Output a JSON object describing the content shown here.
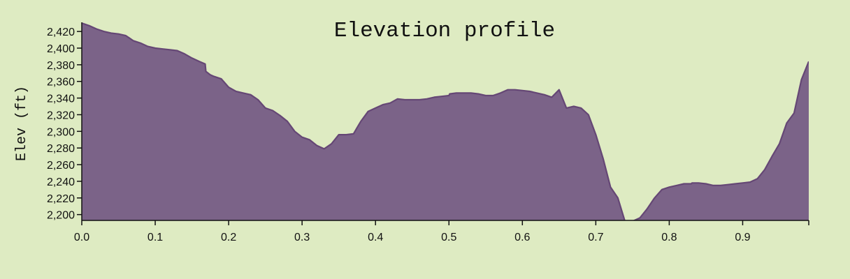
{
  "chart_data": {
    "type": "area",
    "title": "Elevation profile",
    "xlabel": "",
    "ylabel": "Elev (ft)",
    "xlim": [
      0,
      0.99
    ],
    "ylim": [
      2193,
      2431
    ],
    "grid": false,
    "colors": {
      "fill": "#7b6388",
      "line": "#654775",
      "background": "#deebc2"
    },
    "x_ticks": [
      0.0,
      0.1,
      0.2,
      0.3,
      0.4,
      0.5,
      0.6,
      0.7,
      0.8,
      0.9
    ],
    "x_tick_labels": [
      "0.0",
      "0.1",
      "0.2",
      "0.3",
      "0.4",
      "0.5",
      "0.6",
      "0.7",
      "0.8",
      "0.9"
    ],
    "y_ticks": [
      2200,
      2220,
      2240,
      2260,
      2280,
      2300,
      2320,
      2340,
      2360,
      2380,
      2400,
      2420
    ],
    "y_tick_labels": [
      "2,200",
      "2,220",
      "2,240",
      "2,260",
      "2,280",
      "2,300",
      "2,320",
      "2,340",
      "2,360",
      "2,380",
      "2,400",
      "2,420"
    ],
    "x": [
      0.0,
      0.01,
      0.02,
      0.03,
      0.04,
      0.05,
      0.06,
      0.065,
      0.07,
      0.08,
      0.09,
      0.1,
      0.11,
      0.12,
      0.13,
      0.14,
      0.15,
      0.16,
      0.168,
      0.169,
      0.175,
      0.18,
      0.19,
      0.2,
      0.21,
      0.22,
      0.23,
      0.24,
      0.25,
      0.26,
      0.27,
      0.28,
      0.29,
      0.3,
      0.31,
      0.32,
      0.33,
      0.34,
      0.35,
      0.36,
      0.37,
      0.38,
      0.39,
      0.4,
      0.41,
      0.42,
      0.43,
      0.44,
      0.45,
      0.46,
      0.47,
      0.48,
      0.49,
      0.5,
      0.501,
      0.51,
      0.52,
      0.53,
      0.54,
      0.55,
      0.56,
      0.57,
      0.58,
      0.59,
      0.6,
      0.61,
      0.62,
      0.63,
      0.64,
      0.65,
      0.66,
      0.67,
      0.68,
      0.69,
      0.7,
      0.71,
      0.72,
      0.73,
      0.74,
      0.75,
      0.76,
      0.77,
      0.78,
      0.79,
      0.8,
      0.81,
      0.82,
      0.83,
      0.831,
      0.84,
      0.85,
      0.86,
      0.87,
      0.88,
      0.89,
      0.9,
      0.91,
      0.92,
      0.93,
      0.94,
      0.95,
      0.96,
      0.97,
      0.98,
      0.99
    ],
    "y": [
      2430,
      2427,
      2423,
      2420,
      2418,
      2417,
      2415,
      2412,
      2409,
      2406,
      2402,
      2400,
      2399,
      2398,
      2397,
      2393,
      2388,
      2384,
      2381,
      2372,
      2368,
      2366,
      2363,
      2353,
      2348,
      2346,
      2344,
      2338,
      2328,
      2325,
      2319,
      2312,
      2300,
      2293,
      2290,
      2283,
      2279,
      2285,
      2296,
      2296,
      2297,
      2312,
      2324,
      2328,
      2332,
      2334,
      2339,
      2338,
      2338,
      2338,
      2339,
      2341,
      2342,
      2343,
      2345,
      2346,
      2346,
      2346,
      2345,
      2343,
      2343,
      2346,
      2350,
      2350,
      2349,
      2348,
      2346,
      2344,
      2341,
      2350,
      2328,
      2330,
      2328,
      2320,
      2296,
      2267,
      2233,
      2220,
      2191,
      2192,
      2196,
      2207,
      2220,
      2230,
      2233,
      2235,
      2237,
      2237,
      2238,
      2238,
      2237,
      2235,
      2235,
      2236,
      2237,
      2238,
      2239,
      2243,
      2254,
      2270,
      2285,
      2310,
      2322,
      2362,
      2384
    ]
  }
}
